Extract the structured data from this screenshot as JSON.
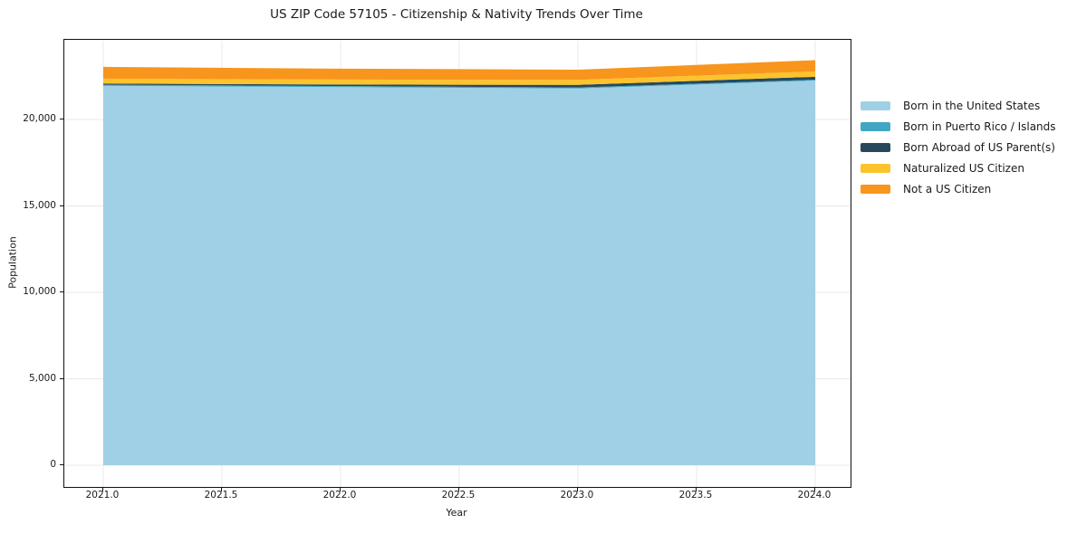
{
  "title": "US ZIP Code 57105 - Citizenship & Nativity Trends Over Time",
  "chart_data": {
    "type": "area",
    "stacked": true,
    "title": "US ZIP Code 57105 - Citizenship & Nativity Trends Over Time",
    "xlabel": "Year",
    "ylabel": "Population",
    "x": [
      2021,
      2022,
      2023,
      2024
    ],
    "series": [
      {
        "name": "Born in the United States",
        "color": "#A0D0E6",
        "values": [
          21950,
          21870,
          21790,
          22250
        ]
      },
      {
        "name": "Born in Puerto Rico / Islands",
        "color": "#41A6C4",
        "values": [
          60,
          60,
          60,
          50
        ]
      },
      {
        "name": "Born Abroad of US Parent(s)",
        "color": "#27485C",
        "values": [
          70,
          90,
          150,
          170
        ]
      },
      {
        "name": "Naturalized US Citizen",
        "color": "#FCC32D",
        "values": [
          280,
          290,
          290,
          310
        ]
      },
      {
        "name": "Not a US Citizen",
        "color": "#F8951D",
        "values": [
          680,
          630,
          590,
          650
        ]
      }
    ],
    "xticks": {
      "values": [
        2021.0,
        2021.5,
        2022.0,
        2022.5,
        2023.0,
        2023.5,
        2024.0
      ],
      "labels": [
        "2021.0",
        "2021.5",
        "2022.0",
        "2022.5",
        "2023.0",
        "2023.5",
        "2024.0"
      ]
    },
    "yticks": {
      "values": [
        0,
        5000,
        10000,
        15000,
        20000
      ],
      "labels": [
        "0",
        "5,000",
        "10,000",
        "15,000",
        "20,000"
      ]
    },
    "xlim": [
      2020.84,
      2024.16
    ],
    "ylim": [
      -1200,
      24600
    ],
    "grid": true,
    "grid_color": "#e8e8e8",
    "legend_position": "right",
    "spine_color": "#111111"
  }
}
